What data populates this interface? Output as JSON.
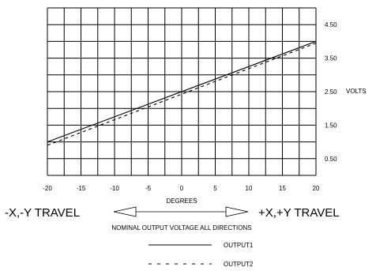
{
  "chart_data": {
    "type": "line",
    "title": "",
    "xlabel": "DEGREES",
    "ylabel": "VOLTS",
    "xlim": [
      -20,
      20
    ],
    "ylim": [
      0,
      5
    ],
    "x_ticks": [
      "-20",
      "-15",
      "-10",
      "-5",
      "0",
      "5",
      "10",
      "15",
      "20"
    ],
    "y_ticks": [
      {
        "value": 0.5,
        "label": "0.50"
      },
      {
        "value": 1.5,
        "label": "1.50"
      },
      {
        "value": 2.5,
        "label": "2.50"
      },
      {
        "value": 3.5,
        "label": "3.50"
      },
      {
        "value": 4.5,
        "label": "4.50"
      }
    ],
    "grid": true,
    "series": [
      {
        "name": "OUTPUT1",
        "style": "solid",
        "x": [
          -20,
          20
        ],
        "y": [
          1.0,
          4.0
        ]
      },
      {
        "name": "OUTPUT2",
        "style": "dashed",
        "x": [
          -20,
          20
        ],
        "y": [
          0.9,
          3.95
        ]
      }
    ],
    "annotations": {
      "left_travel": "-X,-Y TRAVEL",
      "right_travel": "+X,+Y TRAVEL",
      "note": "NOMINAL OUTPUT VOLTAGE ALL DIRECTIONS"
    }
  }
}
